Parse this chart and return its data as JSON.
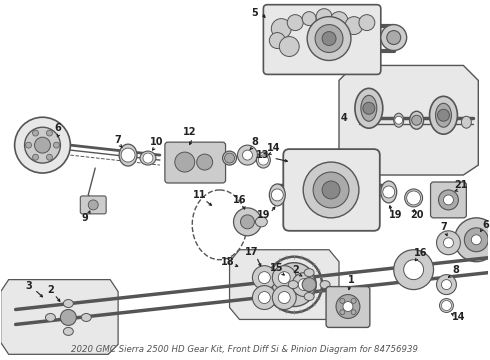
{
  "title": "2020 GMC Sierra 2500 HD Gear Kit, Front Diff Si & Pinion Diagram for 84756939",
  "bg": "#ffffff",
  "fg": "#222222",
  "gray1": "#555555",
  "gray2": "#888888",
  "gray3": "#aaaaaa",
  "gray4": "#cccccc",
  "gray5": "#e8e8e8",
  "fig_w": 4.9,
  "fig_h": 3.6,
  "dpi": 100
}
